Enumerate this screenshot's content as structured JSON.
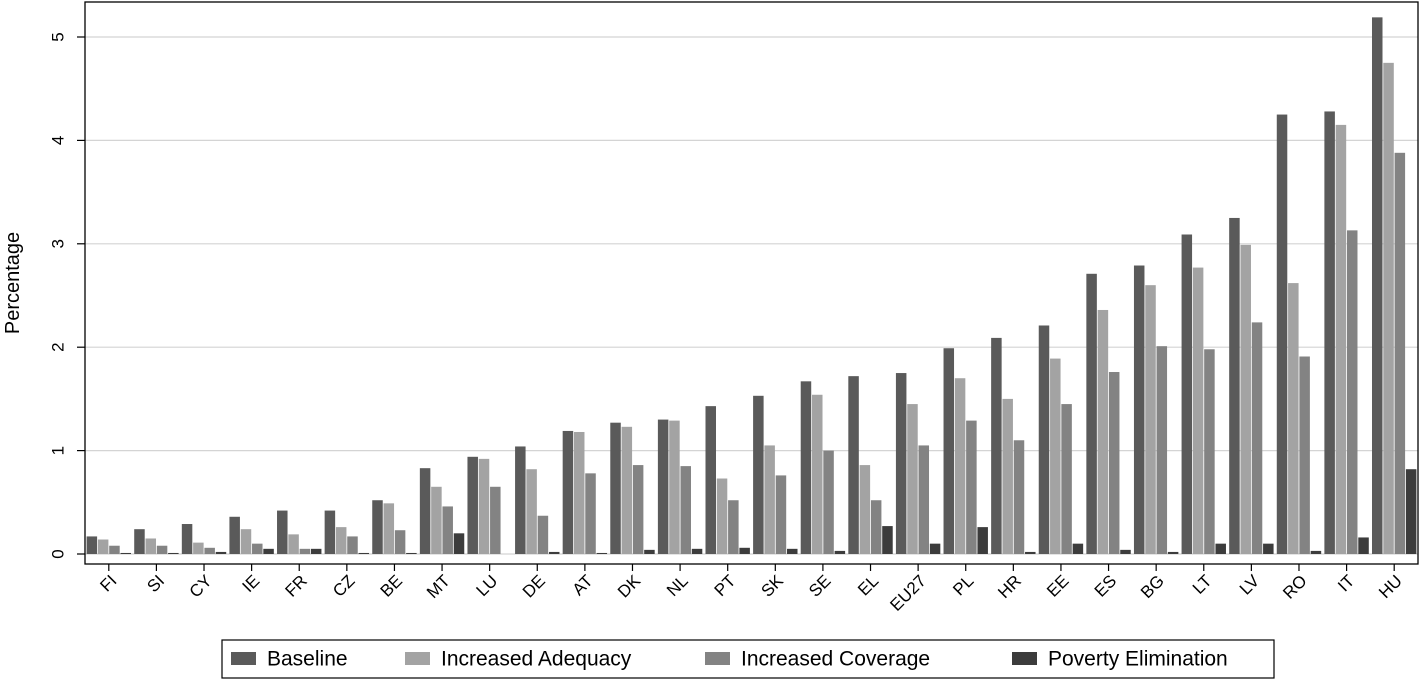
{
  "chart_data": {
    "type": "bar",
    "title": "",
    "xlabel": "",
    "ylabel": "Percentage",
    "ylim": [
      0,
      5.3
    ],
    "yticks": [
      0,
      1,
      2,
      3,
      4,
      5
    ],
    "grid": true,
    "legend_position": "bottom",
    "categories": [
      "FI",
      "SI",
      "CY",
      "IE",
      "FR",
      "CZ",
      "BE",
      "MT",
      "LU",
      "DE",
      "AT",
      "DK",
      "NL",
      "PT",
      "SK",
      "SE",
      "EL",
      "EU27",
      "PL",
      "HR",
      "EE",
      "ES",
      "BG",
      "LT",
      "LV",
      "RO",
      "IT",
      "HU"
    ],
    "series": [
      {
        "name": "Baseline",
        "color": "#5a5a5a",
        "values": [
          0.17,
          0.24,
          0.29,
          0.36,
          0.42,
          0.42,
          0.52,
          0.83,
          0.94,
          1.04,
          1.19,
          1.27,
          1.3,
          1.43,
          1.53,
          1.67,
          1.72,
          1.75,
          1.99,
          2.09,
          2.21,
          2.71,
          2.79,
          3.09,
          3.25,
          4.25,
          4.28,
          5.19
        ]
      },
      {
        "name": "Increased Adequacy",
        "color": "#a3a3a3",
        "values": [
          0.14,
          0.15,
          0.11,
          0.24,
          0.19,
          0.26,
          0.49,
          0.65,
          0.92,
          0.82,
          1.18,
          1.23,
          1.29,
          0.73,
          1.05,
          1.54,
          0.86,
          1.45,
          1.7,
          1.5,
          1.89,
          2.36,
          2.6,
          2.77,
          2.99,
          2.62,
          4.15,
          4.75
        ]
      },
      {
        "name": "Increased Coverage",
        "color": "#838383",
        "values": [
          0.08,
          0.08,
          0.06,
          0.1,
          0.05,
          0.17,
          0.23,
          0.46,
          0.65,
          0.37,
          0.78,
          0.86,
          0.85,
          0.52,
          0.76,
          1.0,
          0.52,
          1.05,
          1.29,
          1.1,
          1.45,
          1.76,
          2.01,
          1.98,
          2.24,
          1.91,
          3.13,
          3.88
        ]
      },
      {
        "name": "Poverty Elimination",
        "color": "#3c3c3c",
        "values": [
          0.01,
          0.01,
          0.02,
          0.05,
          0.05,
          0.01,
          0.01,
          0.2,
          0.0,
          0.02,
          0.01,
          0.04,
          0.05,
          0.06,
          0.05,
          0.03,
          0.27,
          0.1,
          0.26,
          0.02,
          0.1,
          0.04,
          0.02,
          0.1,
          0.1,
          0.03,
          0.16,
          0.82
        ]
      }
    ]
  }
}
